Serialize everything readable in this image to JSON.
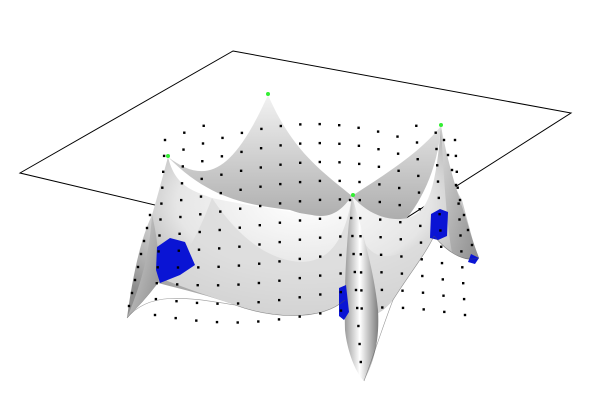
{
  "scene": {
    "colors": {
      "background": "#ffffff",
      "plane_edge": "#000000",
      "surface_light": "#ffffff",
      "surface_dark": "#8a8a8a",
      "underside": "#0a14d4",
      "node": "#000000",
      "support_node": "#33ee33"
    }
  }
}
